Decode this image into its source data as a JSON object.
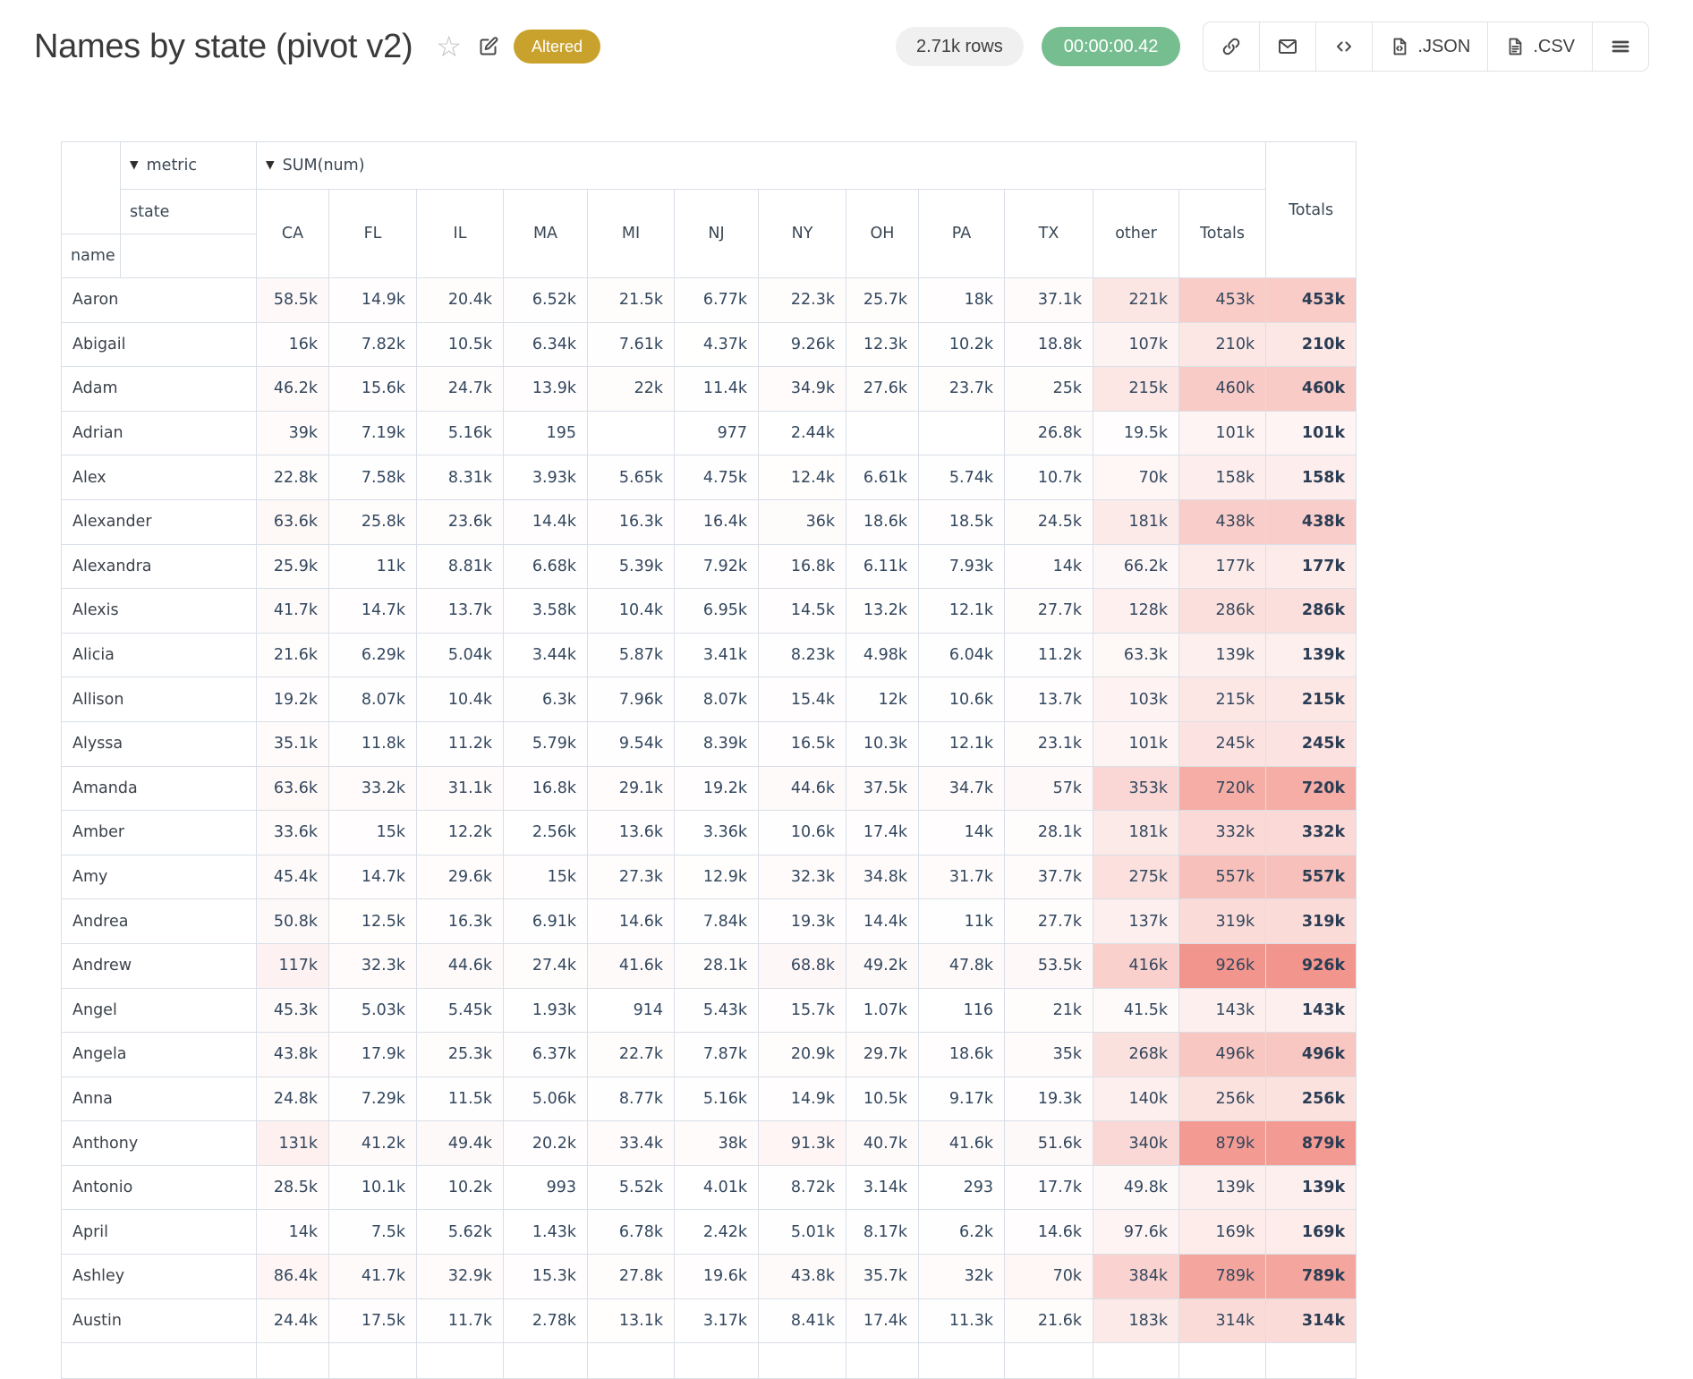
{
  "header": {
    "title": "Names by state (pivot v2)",
    "star_glyph": "☆",
    "status_badge": {
      "label": "Altered",
      "bg": "#c9a22d",
      "text_color": "#ffffff"
    },
    "rows_badge": {
      "label": "2.71k rows",
      "bg": "#f0f0f1",
      "text_color": "#3f3f3f"
    },
    "time_badge": {
      "label": "00:00:00.42",
      "bg": "#76bd90",
      "text_color": "#ffffff"
    },
    "toolbar": {
      "code_label": "<>",
      "json_label": ".JSON",
      "csv_label": ".CSV"
    }
  },
  "pivot": {
    "dropdown_glyph": "▼",
    "metric_axis_label": "metric",
    "metric_value_label": "SUM(num)",
    "state_axis_label": "state",
    "name_axis_label": "name",
    "totals_label": "Totals",
    "border_color": "#d9dfe7",
    "columns": [
      "CA",
      "FL",
      "IL",
      "MA",
      "MI",
      "NJ",
      "NY",
      "OH",
      "PA",
      "TX",
      "other",
      "Totals"
    ],
    "heat": {
      "max": 926000,
      "max_color": [
        242,
        150,
        141
      ]
    },
    "rows": [
      {
        "name": "Aaron",
        "values": [
          "58.5k",
          "14.9k",
          "20.4k",
          "6.52k",
          "21.5k",
          "6.77k",
          "22.3k",
          "25.7k",
          "18k",
          "37.1k",
          "221k",
          "453k"
        ],
        "total": "453k"
      },
      {
        "name": "Abigail",
        "values": [
          "16k",
          "7.82k",
          "10.5k",
          "6.34k",
          "7.61k",
          "4.37k",
          "9.26k",
          "12.3k",
          "10.2k",
          "18.8k",
          "107k",
          "210k"
        ],
        "total": "210k"
      },
      {
        "name": "Adam",
        "values": [
          "46.2k",
          "15.6k",
          "24.7k",
          "13.9k",
          "22k",
          "11.4k",
          "34.9k",
          "27.6k",
          "23.7k",
          "25k",
          "215k",
          "460k"
        ],
        "total": "460k"
      },
      {
        "name": "Adrian",
        "values": [
          "39k",
          "7.19k",
          "5.16k",
          "195",
          "",
          "977",
          "2.44k",
          "",
          "",
          "26.8k",
          "19.5k",
          "101k"
        ],
        "total": "101k"
      },
      {
        "name": "Alex",
        "values": [
          "22.8k",
          "7.58k",
          "8.31k",
          "3.93k",
          "5.65k",
          "4.75k",
          "12.4k",
          "6.61k",
          "5.74k",
          "10.7k",
          "70k",
          "158k"
        ],
        "total": "158k"
      },
      {
        "name": "Alexander",
        "values": [
          "63.6k",
          "25.8k",
          "23.6k",
          "14.4k",
          "16.3k",
          "16.4k",
          "36k",
          "18.6k",
          "18.5k",
          "24.5k",
          "181k",
          "438k"
        ],
        "total": "438k"
      },
      {
        "name": "Alexandra",
        "values": [
          "25.9k",
          "11k",
          "8.81k",
          "6.68k",
          "5.39k",
          "7.92k",
          "16.8k",
          "6.11k",
          "7.93k",
          "14k",
          "66.2k",
          "177k"
        ],
        "total": "177k"
      },
      {
        "name": "Alexis",
        "values": [
          "41.7k",
          "14.7k",
          "13.7k",
          "3.58k",
          "10.4k",
          "6.95k",
          "14.5k",
          "13.2k",
          "12.1k",
          "27.7k",
          "128k",
          "286k"
        ],
        "total": "286k"
      },
      {
        "name": "Alicia",
        "values": [
          "21.6k",
          "6.29k",
          "5.04k",
          "3.44k",
          "5.87k",
          "3.41k",
          "8.23k",
          "4.98k",
          "6.04k",
          "11.2k",
          "63.3k",
          "139k"
        ],
        "total": "139k"
      },
      {
        "name": "Allison",
        "values": [
          "19.2k",
          "8.07k",
          "10.4k",
          "6.3k",
          "7.96k",
          "8.07k",
          "15.4k",
          "12k",
          "10.6k",
          "13.7k",
          "103k",
          "215k"
        ],
        "total": "215k"
      },
      {
        "name": "Alyssa",
        "values": [
          "35.1k",
          "11.8k",
          "11.2k",
          "5.79k",
          "9.54k",
          "8.39k",
          "16.5k",
          "10.3k",
          "12.1k",
          "23.1k",
          "101k",
          "245k"
        ],
        "total": "245k"
      },
      {
        "name": "Amanda",
        "values": [
          "63.6k",
          "33.2k",
          "31.1k",
          "16.8k",
          "29.1k",
          "19.2k",
          "44.6k",
          "37.5k",
          "34.7k",
          "57k",
          "353k",
          "720k"
        ],
        "total": "720k"
      },
      {
        "name": "Amber",
        "values": [
          "33.6k",
          "15k",
          "12.2k",
          "2.56k",
          "13.6k",
          "3.36k",
          "10.6k",
          "17.4k",
          "14k",
          "28.1k",
          "181k",
          "332k"
        ],
        "total": "332k"
      },
      {
        "name": "Amy",
        "values": [
          "45.4k",
          "14.7k",
          "29.6k",
          "15k",
          "27.3k",
          "12.9k",
          "32.3k",
          "34.8k",
          "31.7k",
          "37.7k",
          "275k",
          "557k"
        ],
        "total": "557k"
      },
      {
        "name": "Andrea",
        "values": [
          "50.8k",
          "12.5k",
          "16.3k",
          "6.91k",
          "14.6k",
          "7.84k",
          "19.3k",
          "14.4k",
          "11k",
          "27.7k",
          "137k",
          "319k"
        ],
        "total": "319k"
      },
      {
        "name": "Andrew",
        "values": [
          "117k",
          "32.3k",
          "44.6k",
          "27.4k",
          "41.6k",
          "28.1k",
          "68.8k",
          "49.2k",
          "47.8k",
          "53.5k",
          "416k",
          "926k"
        ],
        "total": "926k"
      },
      {
        "name": "Angel",
        "values": [
          "45.3k",
          "5.03k",
          "5.45k",
          "1.93k",
          "914",
          "5.43k",
          "15.7k",
          "1.07k",
          "116",
          "21k",
          "41.5k",
          "143k"
        ],
        "total": "143k"
      },
      {
        "name": "Angela",
        "values": [
          "43.8k",
          "17.9k",
          "25.3k",
          "6.37k",
          "22.7k",
          "7.87k",
          "20.9k",
          "29.7k",
          "18.6k",
          "35k",
          "268k",
          "496k"
        ],
        "total": "496k"
      },
      {
        "name": "Anna",
        "values": [
          "24.8k",
          "7.29k",
          "11.5k",
          "5.06k",
          "8.77k",
          "5.16k",
          "14.9k",
          "10.5k",
          "9.17k",
          "19.3k",
          "140k",
          "256k"
        ],
        "total": "256k"
      },
      {
        "name": "Anthony",
        "values": [
          "131k",
          "41.2k",
          "49.4k",
          "20.2k",
          "33.4k",
          "38k",
          "91.3k",
          "40.7k",
          "41.6k",
          "51.6k",
          "340k",
          "879k"
        ],
        "total": "879k"
      },
      {
        "name": "Antonio",
        "values": [
          "28.5k",
          "10.1k",
          "10.2k",
          "993",
          "5.52k",
          "4.01k",
          "8.72k",
          "3.14k",
          "293",
          "17.7k",
          "49.8k",
          "139k"
        ],
        "total": "139k"
      },
      {
        "name": "April",
        "values": [
          "14k",
          "7.5k",
          "5.62k",
          "1.43k",
          "6.78k",
          "2.42k",
          "5.01k",
          "8.17k",
          "6.2k",
          "14.6k",
          "97.6k",
          "169k"
        ],
        "total": "169k"
      },
      {
        "name": "Ashley",
        "values": [
          "86.4k",
          "41.7k",
          "32.9k",
          "15.3k",
          "27.8k",
          "19.6k",
          "43.8k",
          "35.7k",
          "32k",
          "70k",
          "384k",
          "789k"
        ],
        "total": "789k"
      },
      {
        "name": "Austin",
        "values": [
          "24.4k",
          "17.5k",
          "11.7k",
          "2.78k",
          "13.1k",
          "3.17k",
          "8.41k",
          "17.4k",
          "11.3k",
          "21.6k",
          "183k",
          "314k"
        ],
        "total": "314k"
      }
    ]
  }
}
